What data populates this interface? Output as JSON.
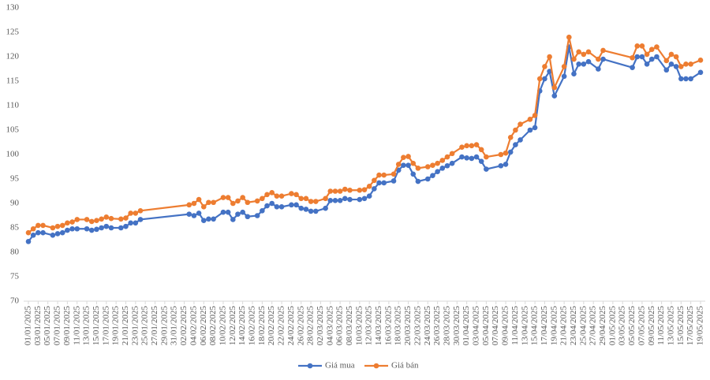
{
  "chart_data": {
    "type": "line",
    "x": [
      "01/01/2025",
      "02/01/2025",
      "03/01/2025",
      "04/01/2025",
      "06/01/2025",
      "07/01/2025",
      "08/01/2025",
      "09/01/2025",
      "10/01/2025",
      "11/01/2025",
      "13/01/2025",
      "14/01/2025",
      "15/01/2025",
      "16/01/2025",
      "17/01/2025",
      "18/01/2025",
      "20/01/2025",
      "21/01/2025",
      "22/01/2025",
      "23/01/2025",
      "24/01/2025",
      "03/02/2025",
      "04/02/2025",
      "05/02/2025",
      "06/02/2025",
      "07/02/2025",
      "08/02/2025",
      "10/02/2025",
      "11/02/2025",
      "12/02/2025",
      "13/02/2025",
      "14/02/2025",
      "15/02/2025",
      "17/02/2025",
      "18/02/2025",
      "19/02/2025",
      "20/02/2025",
      "21/02/2025",
      "22/02/2025",
      "24/02/2025",
      "25/02/2025",
      "26/02/2025",
      "27/02/2025",
      "28/02/2025",
      "01/03/2025",
      "03/03/2025",
      "04/03/2025",
      "05/03/2025",
      "06/03/2025",
      "07/03/2025",
      "08/03/2025",
      "10/03/2025",
      "11/03/2025",
      "12/03/2025",
      "13/03/2025",
      "14/03/2025",
      "15/03/2025",
      "17/03/2025",
      "18/03/2025",
      "19/03/2025",
      "20/03/2025",
      "21/03/2025",
      "22/03/2025",
      "24/03/2025",
      "25/03/2025",
      "26/03/2025",
      "27/03/2025",
      "28/03/2025",
      "29/03/2025",
      "31/03/2025",
      "01/04/2025",
      "02/04/2025",
      "03/04/2025",
      "04/04/2025",
      "05/04/2025",
      "08/04/2025",
      "09/04/2025",
      "10/04/2025",
      "11/04/2025",
      "12/04/2025",
      "14/04/2025",
      "15/04/2025",
      "16/04/2025",
      "17/04/2025",
      "18/04/2025",
      "19/04/2025",
      "21/04/2025",
      "22/04/2025",
      "23/04/2025",
      "24/04/2025",
      "25/04/2025",
      "26/04/2025",
      "28/04/2025",
      "29/04/2025",
      "05/05/2025",
      "06/05/2025",
      "07/05/2025",
      "08/05/2025",
      "09/05/2025",
      "10/05/2025",
      "12/05/2025",
      "13/05/2025",
      "14/05/2025",
      "15/05/2025",
      "16/05/2025",
      "17/05/2025",
      "19/05/2025"
    ],
    "series": [
      {
        "name": "Giá mua",
        "color": "#4472c4",
        "values": [
          82.2,
          83.5,
          84.0,
          84.0,
          83.5,
          83.8,
          84.0,
          84.5,
          84.8,
          84.8,
          84.8,
          84.5,
          84.7,
          85.0,
          85.3,
          85.0,
          85.0,
          85.3,
          86.0,
          86.0,
          86.7,
          87.8,
          87.5,
          88.0,
          86.5,
          86.8,
          86.8,
          88.2,
          88.2,
          86.7,
          87.8,
          88.2,
          87.3,
          87.5,
          88.5,
          89.5,
          90.0,
          89.3,
          89.3,
          89.7,
          89.7,
          89.0,
          88.8,
          88.4,
          88.4,
          89.0,
          90.6,
          90.6,
          90.6,
          91.0,
          90.8,
          90.8,
          91.0,
          91.5,
          93.0,
          94.2,
          94.2,
          94.6,
          96.8,
          97.8,
          97.8,
          96.0,
          94.5,
          95.0,
          95.7,
          96.5,
          97.2,
          97.7,
          98.2,
          99.5,
          99.3,
          99.2,
          99.5,
          98.6,
          97.0,
          97.7,
          98.0,
          100.5,
          102.0,
          103.0,
          105.0,
          105.5,
          113.0,
          115.5,
          117.0,
          112.0,
          116.0,
          122.0,
          116.5,
          118.5,
          118.5,
          119.0,
          117.5,
          119.5,
          117.8,
          120.0,
          120.0,
          118.5,
          119.5,
          120.0,
          117.3,
          118.5,
          118.0,
          115.5,
          115.5,
          115.5,
          116.8
        ]
      },
      {
        "name": "Giá bán",
        "color": "#ed7d31",
        "values": [
          84.0,
          84.8,
          85.5,
          85.5,
          85.0,
          85.3,
          85.5,
          86.0,
          86.2,
          86.7,
          86.7,
          86.3,
          86.5,
          86.8,
          87.2,
          86.9,
          86.8,
          87.0,
          88.0,
          88.0,
          88.5,
          89.7,
          90.0,
          90.8,
          89.3,
          90.2,
          90.2,
          91.2,
          91.2,
          90.0,
          90.5,
          91.2,
          90.2,
          90.5,
          91.0,
          91.8,
          92.2,
          91.5,
          91.5,
          92.0,
          91.8,
          91.0,
          91.0,
          90.4,
          90.4,
          91.0,
          92.5,
          92.5,
          92.5,
          92.9,
          92.7,
          92.7,
          92.8,
          93.5,
          94.7,
          95.8,
          95.8,
          96.0,
          98.0,
          99.4,
          99.6,
          98.2,
          97.2,
          97.5,
          97.8,
          98.2,
          98.8,
          99.5,
          100.2,
          101.5,
          101.8,
          101.8,
          102.0,
          101.0,
          99.5,
          100.0,
          100.3,
          103.5,
          105.0,
          106.2,
          107.2,
          108.0,
          115.5,
          118.0,
          120.0,
          113.7,
          118.0,
          124.0,
          119.5,
          121.0,
          120.5,
          121.0,
          119.5,
          121.3,
          119.8,
          122.2,
          122.2,
          120.5,
          121.5,
          122.0,
          119.2,
          120.5,
          120.0,
          118.0,
          118.5,
          118.5,
          119.3
        ]
      }
    ],
    "xlim": [
      "01/01/2025",
      "19/05/2025"
    ],
    "xticks": [
      "01/01/2025",
      "03/01/2025",
      "05/01/2025",
      "07/01/2025",
      "09/01/2025",
      "11/01/2025",
      "13/01/2025",
      "15/01/2025",
      "17/01/2025",
      "19/01/2025",
      "21/01/2025",
      "23/01/2025",
      "25/01/2025",
      "27/01/2025",
      "29/01/2025",
      "31/01/2025",
      "02/02/2025",
      "04/02/2025",
      "06/02/2025",
      "08/02/2025",
      "10/02/2025",
      "12/02/2025",
      "14/02/2025",
      "16/02/2025",
      "18/02/2025",
      "20/02/2025",
      "22/02/2025",
      "24/02/2025",
      "26/02/2025",
      "28/02/2025",
      "02/03/2025",
      "04/03/2025",
      "06/03/2025",
      "08/03/2025",
      "10/03/2025",
      "12/03/2025",
      "14/03/2025",
      "16/03/2025",
      "18/03/2025",
      "20/03/2025",
      "22/03/2025",
      "24/03/2025",
      "26/03/2025",
      "28/03/2025",
      "30/03/2025",
      "01/04/2025",
      "03/04/2025",
      "05/04/2025",
      "07/04/2025",
      "09/04/2025",
      "11/04/2025",
      "13/04/2025",
      "15/04/2025",
      "17/04/2025",
      "19/04/2025",
      "21/04/2025",
      "23/04/2025",
      "25/04/2025",
      "27/04/2025",
      "29/04/2025",
      "01/05/2025",
      "03/05/2025",
      "05/05/2025",
      "07/05/2025",
      "09/05/2025",
      "11/05/2025",
      "13/05/2025",
      "15/05/2025",
      "17/05/2025",
      "19/05/2025"
    ],
    "ylim": [
      70,
      130
    ],
    "yticks": [
      70,
      75,
      80,
      85,
      90,
      95,
      100,
      105,
      110,
      115,
      120,
      125,
      130
    ]
  }
}
